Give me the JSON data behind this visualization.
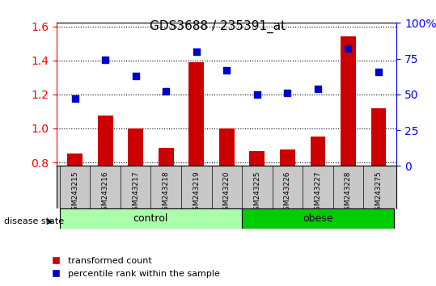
{
  "title": "GDS3688 / 235391_at",
  "categories": [
    "GSM243215",
    "GSM243216",
    "GSM243217",
    "GSM243218",
    "GSM243219",
    "GSM243220",
    "GSM243225",
    "GSM243226",
    "GSM243227",
    "GSM243228",
    "GSM243275"
  ],
  "red_values": [
    0.855,
    1.075,
    1.0,
    0.885,
    1.39,
    1.0,
    0.865,
    0.875,
    0.95,
    1.54,
    1.12
  ],
  "blue_values": [
    0.47,
    0.74,
    0.63,
    0.52,
    0.8,
    0.67,
    0.5,
    0.51,
    0.54,
    0.82,
    0.66
  ],
  "blue_values_pct": [
    47,
    74,
    63,
    52,
    80,
    67,
    50,
    51,
    54,
    82,
    66
  ],
  "ylim_left": [
    0.78,
    1.62
  ],
  "ylim_right": [
    0,
    100
  ],
  "yticks_left": [
    0.8,
    1.0,
    1.2,
    1.4,
    1.6
  ],
  "yticks_right": [
    0,
    25,
    50,
    75,
    100
  ],
  "control_indices": [
    0,
    1,
    2,
    3,
    4,
    5
  ],
  "obese_indices": [
    6,
    7,
    8,
    9,
    10
  ],
  "bar_color": "#CC0000",
  "dot_color": "#0000CC",
  "control_color": "#AAFFAA",
  "obese_color": "#00CC00",
  "bg_color": "#C8C8C8",
  "legend_red": "transformed count",
  "legend_blue": "percentile rank within the sample",
  "disease_state_label": "disease state",
  "control_label": "control",
  "obese_label": "obese"
}
